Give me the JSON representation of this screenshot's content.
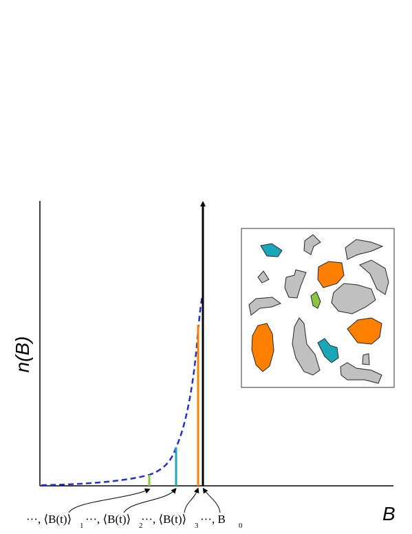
{
  "y_label": "n(B)",
  "x_label": "B",
  "markers": [
    {
      "label": "···, ⟨B(t)⟩",
      "subscript": "1"
    },
    {
      "label": "···, ⟨B(t)⟩",
      "subscript": "2"
    },
    {
      "label": "···, ⟨B(t)⟩",
      "subscript": "3"
    },
    {
      "label": "···, B",
      "subscript": "0"
    }
  ]
}
